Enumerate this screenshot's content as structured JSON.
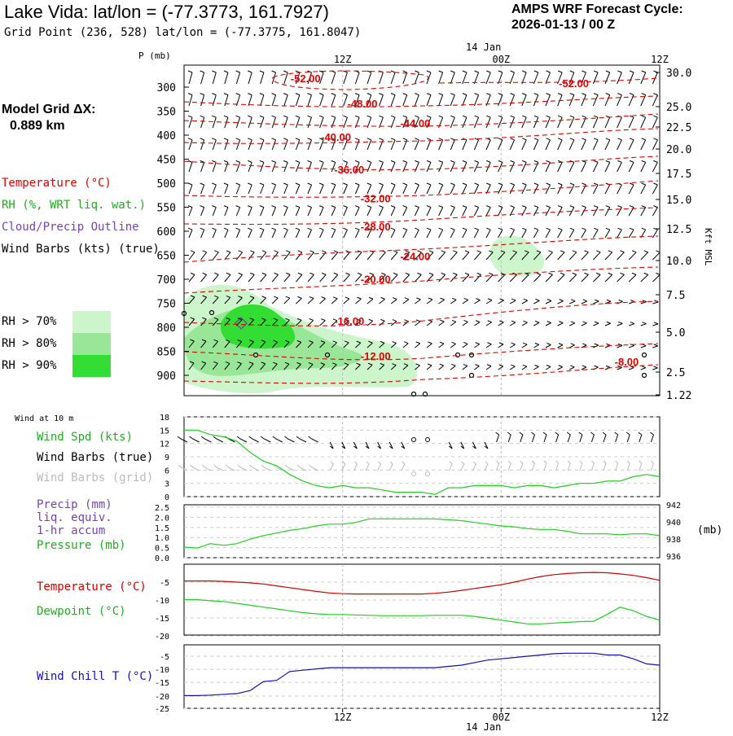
{
  "header": {
    "title": "Lake Vida:  lat/lon = (-77.3773, 161.7927)",
    "grid_point": "Grid Point (236, 528) lat/lon = (-77.3775, 161.8047)",
    "cycle_label": "AMPS WRF Forecast Cycle:",
    "cycle_value": "2026-01-13 / 00  Z",
    "model_grid_label": "Model Grid ΔX:",
    "model_grid_value": "0.889 km"
  },
  "legend": {
    "temperature": "Temperature (°C)",
    "rh": "RH (%, WRT liq. wat.)",
    "cloud": "Cloud/Precip Outline",
    "wind": "Wind Barbs (kts) (true)",
    "rh_levels": [
      "RH > 70%",
      "RH > 80%",
      "RH > 90%"
    ],
    "colors": {
      "rh70": "#ccf5cc",
      "rh80": "#99e699",
      "rh90": "#33dd33",
      "temp": "#dd0000",
      "cloud": "#7744aa"
    }
  },
  "time_axis": {
    "top_labels": [
      "12Z",
      "00Z",
      "12Z"
    ],
    "bottom_labels": [
      "12Z",
      "00Z",
      "12Z"
    ],
    "date_label": "14 Jan",
    "hours": [
      12,
      24,
      36
    ]
  },
  "chart_data": [
    {
      "type": "line",
      "panel": "cross-section",
      "ylabel": "P (mb)",
      "y2label": "Kft MSL",
      "pressure_ticks": [
        "300",
        "350",
        "400",
        "450",
        "500",
        "550",
        "600",
        "650",
        "700",
        "750",
        "800",
        "850",
        "900"
      ],
      "height_ticks": [
        "30.0",
        "25.0",
        "22.5",
        "20.0",
        "17.5",
        "15.0",
        "12.5",
        "10.0",
        "7.5",
        "5.0",
        "2.5",
        "1.22"
      ],
      "isotherm_labels": [
        {
          "text": "-52.00",
          "hour": 9.2,
          "p": 290
        },
        {
          "text": "-52.00",
          "hour": 29.5,
          "p": 300
        },
        {
          "text": "-48.00",
          "hour": 13.5,
          "p": 342
        },
        {
          "text": "-44.00",
          "hour": 17.5,
          "p": 383
        },
        {
          "text": "-40.00",
          "hour": 11.5,
          "p": 412
        },
        {
          "text": "-36.00",
          "hour": 12.5,
          "p": 480
        },
        {
          "text": "-32.00",
          "hour": 14.5,
          "p": 540
        },
        {
          "text": "-28.00",
          "hour": 14.5,
          "p": 598
        },
        {
          "text": "-24.00",
          "hour": 17.5,
          "p": 660
        },
        {
          "text": "-20.00",
          "hour": 14.5,
          "p": 708
        },
        {
          "text": "-16.00",
          "hour": 12.5,
          "p": 795
        },
        {
          "text": "-12.00",
          "hour": 14.5,
          "p": 868
        },
        {
          "text": "-8.00",
          "hour": 33.5,
          "p": 880
        }
      ]
    },
    {
      "type": "line",
      "panel": "wind10m",
      "title": "Wind at 10 m",
      "labels": [
        "Wind Spd (kts)",
        "Wind Barbs (true)",
        "Wind Barbs (grid)"
      ],
      "y_ticks": [
        "18",
        "15",
        "12",
        "9",
        "6",
        "3",
        "0"
      ],
      "ylim": [
        0,
        18
      ],
      "x": [
        0,
        1,
        2,
        3,
        4,
        5,
        6,
        7,
        8,
        9,
        10,
        11,
        12,
        13,
        14,
        15,
        16,
        17,
        18,
        19,
        20,
        21,
        22,
        23,
        24,
        25,
        26,
        27,
        28,
        29,
        30,
        31,
        32,
        33,
        34,
        35,
        36
      ],
      "values": [
        15,
        15,
        14,
        13.5,
        12.5,
        10,
        8,
        7,
        5,
        3.5,
        2.5,
        2,
        2.5,
        2,
        2,
        1.5,
        1,
        1,
        1,
        0.5,
        2,
        2,
        2.5,
        2.5,
        2.5,
        2,
        2.5,
        2.5,
        2,
        2.5,
        3,
        3,
        3.5,
        3.5,
        4.5,
        5,
        4.5
      ]
    },
    {
      "type": "line",
      "panel": "precip-pressure",
      "labels": [
        "Precip (mm)",
        "liq. equiv.",
        "1-hr accum",
        "Pressure (mb)"
      ],
      "y_ticks": [
        "2.5",
        "2.0",
        "1.5",
        "1.0",
        "0.5",
        "0.0"
      ],
      "y2_ticks": [
        "942",
        "940",
        "938",
        "936"
      ],
      "y2_unit": "(mb)",
      "ylim": [
        936,
        942
      ],
      "x": [
        0,
        1,
        2,
        3,
        4,
        5,
        6,
        7,
        8,
        9,
        10,
        11,
        12,
        13,
        14,
        15,
        16,
        17,
        18,
        19,
        20,
        21,
        22,
        23,
        24,
        25,
        26,
        27,
        28,
        29,
        30,
        31,
        32,
        33,
        34,
        35,
        36
      ],
      "values": [
        937.2,
        937.1,
        937.6,
        937.4,
        937.6,
        938.1,
        938.5,
        938.8,
        939.1,
        939.3,
        939.6,
        939.8,
        939.8,
        940.0,
        940.4,
        940.4,
        940.4,
        940.4,
        940.4,
        940.4,
        940.3,
        940.2,
        940.0,
        939.8,
        939.6,
        939.5,
        939.3,
        939.2,
        939.2,
        939.0,
        938.7,
        938.7,
        938.7,
        938.6,
        938.7,
        938.7,
        938.5
      ]
    },
    {
      "type": "line",
      "panel": "temperature",
      "labels": [
        "Temperature (°C)",
        "Dewpoint (°C)"
      ],
      "y_ticks": [
        "-5",
        "-10",
        "-15",
        "-20"
      ],
      "ylim": [
        -20,
        -1
      ],
      "x": [
        0,
        1,
        2,
        3,
        4,
        5,
        6,
        7,
        8,
        9,
        10,
        11,
        12,
        13,
        14,
        15,
        16,
        17,
        18,
        19,
        20,
        21,
        22,
        23,
        24,
        25,
        26,
        27,
        28,
        29,
        30,
        31,
        32,
        33,
        34,
        35,
        36
      ],
      "series": [
        {
          "name": "Temperature",
          "color": "#cc0000",
          "values": [
            -5.5,
            -5.5,
            -5.5,
            -5.6,
            -5.8,
            -6.0,
            -6.3,
            -6.8,
            -7.3,
            -7.8,
            -8.3,
            -8.7,
            -8.9,
            -9.0,
            -9.0,
            -9.0,
            -9.0,
            -9.0,
            -9.0,
            -8.8,
            -8.5,
            -8.0,
            -7.5,
            -7.0,
            -6.5,
            -5.8,
            -5.0,
            -4.3,
            -3.8,
            -3.5,
            -3.3,
            -3.2,
            -3.3,
            -3.6,
            -4.0,
            -4.6,
            -5.3
          ]
        },
        {
          "name": "Dewpoint",
          "color": "#22cc22",
          "values": [
            -10.5,
            -10.5,
            -10.8,
            -11.0,
            -11.5,
            -12.0,
            -12.5,
            -13.0,
            -13.5,
            -14.0,
            -14.3,
            -14.5,
            -14.5,
            -14.6,
            -14.7,
            -14.8,
            -14.8,
            -14.8,
            -14.8,
            -14.7,
            -14.7,
            -14.7,
            -15.0,
            -15.5,
            -16.0,
            -16.5,
            -17.0,
            -17.0,
            -16.8,
            -16.6,
            -16.4,
            -16.3,
            -14.5,
            -12.5,
            -13.5,
            -15.0,
            -16.0
          ]
        }
      ]
    },
    {
      "type": "line",
      "panel": "windchill",
      "labels": [
        "Wind Chill T (°C)"
      ],
      "y_ticks": [
        "-5",
        "-10",
        "-15",
        "-20",
        "-25"
      ],
      "ylim": [
        -25,
        0
      ],
      "x": [
        0,
        1,
        2,
        3,
        4,
        5,
        6,
        7,
        8,
        9,
        10,
        11,
        12,
        13,
        14,
        15,
        16,
        17,
        18,
        19,
        20,
        21,
        22,
        23,
        24,
        25,
        26,
        27,
        28,
        29,
        30,
        31,
        32,
        33,
        34,
        35,
        36
      ],
      "color": "#1111aa",
      "values": [
        -20,
        -20,
        -19.8,
        -19.5,
        -19.2,
        -18.0,
        -14.5,
        -14,
        -10.5,
        -10,
        -9.5,
        -9,
        -9,
        -9,
        -9,
        -9,
        -9,
        -9,
        -9,
        -9,
        -8.5,
        -8,
        -7,
        -6,
        -5.5,
        -5,
        -4.5,
        -4,
        -3.5,
        -3.3,
        -3.3,
        -3.3,
        -4,
        -4,
        -5.5,
        -7.5,
        -8
      ]
    }
  ]
}
